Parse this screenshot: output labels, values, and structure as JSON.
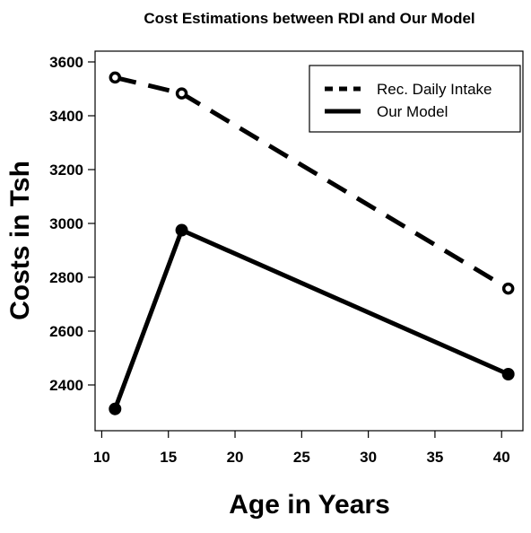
{
  "chart_data": {
    "type": "line",
    "title": "Cost Estimations between RDI and Our Model",
    "xlabel": "Age in Years",
    "ylabel": "Costs in Tsh",
    "xlim": [
      9.5,
      41.6
    ],
    "ylim": [
      2230,
      3640
    ],
    "xticks": [
      10,
      15,
      20,
      25,
      30,
      35,
      40
    ],
    "yticks": [
      2400,
      2600,
      2800,
      3000,
      3200,
      3400,
      3600
    ],
    "legend_position": "top-right",
    "series": [
      {
        "name": "Rec. Daily Intake",
        "line_style": "dashed",
        "marker": "open-circle",
        "points": [
          {
            "x": 11,
            "y": 3542
          },
          {
            "x": 16,
            "y": 3483
          },
          {
            "x": 40.5,
            "y": 2758
          }
        ]
      },
      {
        "name": "Our Model",
        "line_style": "solid",
        "marker": "filled-circle",
        "points": [
          {
            "x": 11,
            "y": 2311
          },
          {
            "x": 16,
            "y": 2975
          },
          {
            "x": 40.5,
            "y": 2440
          }
        ]
      }
    ]
  }
}
